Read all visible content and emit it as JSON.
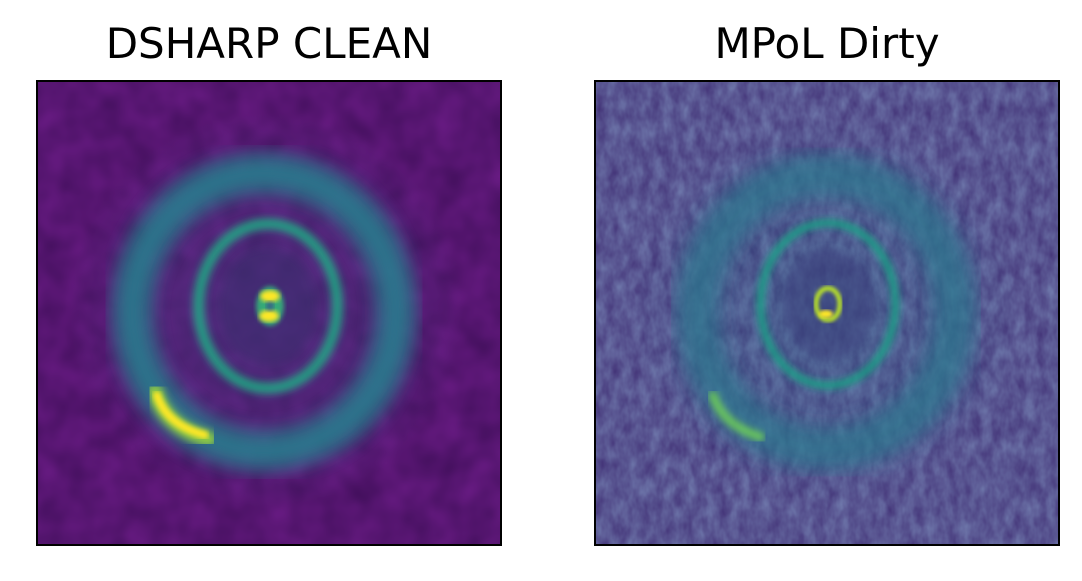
{
  "panels": [
    {
      "title": "DSHARP CLEAN",
      "colormap": "viridis"
    },
    {
      "title": "MPoL Dirty",
      "colormap": "viridis"
    }
  ],
  "colors": {
    "background_dark": "#440154",
    "ring_teal": "#21918c",
    "bright_yellow": "#fde725"
  }
}
